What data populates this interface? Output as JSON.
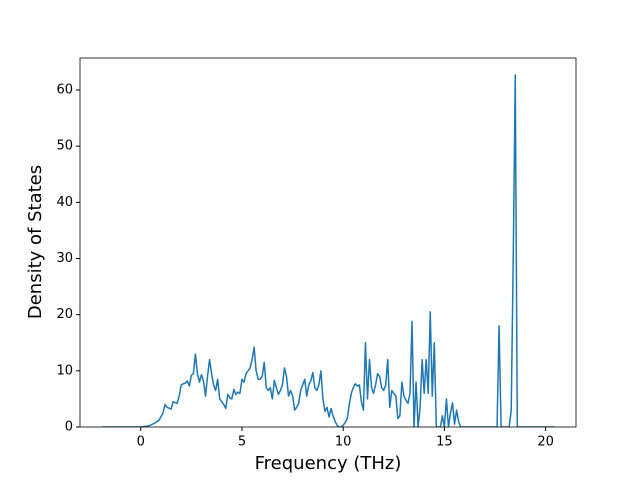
{
  "chart_data": {
    "type": "line",
    "xlabel": "Frequency (THz)",
    "ylabel": "Density of States",
    "xlim": [
      -3.0,
      21.5
    ],
    "ylim": [
      0,
      65.7
    ],
    "xticks": [
      0,
      5,
      10,
      15,
      20
    ],
    "yticks": [
      0,
      10,
      20,
      30,
      40,
      50,
      60
    ],
    "grid": false,
    "series": [
      {
        "color": "#1f77b4",
        "x": [
          -1.9,
          -1,
          0,
          0.4,
          0.7,
          0.9,
          1.1,
          1.2,
          1.3,
          1.5,
          1.6,
          1.8,
          1.9,
          2.0,
          2.1,
          2.2,
          2.3,
          2.4,
          2.5,
          2.6,
          2.7,
          2.8,
          2.9,
          3.0,
          3.1,
          3.2,
          3.3,
          3.4,
          3.5,
          3.6,
          3.7,
          3.8,
          3.9,
          4.0,
          4.1,
          4.2,
          4.3,
          4.4,
          4.5,
          4.6,
          4.7,
          4.8,
          4.9,
          5.0,
          5.1,
          5.2,
          5.3,
          5.4,
          5.5,
          5.6,
          5.7,
          5.8,
          5.9,
          6.0,
          6.1,
          6.2,
          6.3,
          6.4,
          6.5,
          6.6,
          6.7,
          6.8,
          6.9,
          7.0,
          7.1,
          7.2,
          7.3,
          7.4,
          7.5,
          7.6,
          7.7,
          7.8,
          7.9,
          8.0,
          8.1,
          8.2,
          8.3,
          8.4,
          8.5,
          8.6,
          8.7,
          8.8,
          8.9,
          9.0,
          9.1,
          9.2,
          9.3,
          9.4,
          9.5,
          9.6,
          9.7,
          9.8,
          9.9,
          10.0,
          10.1,
          10.2,
          10.3,
          10.4,
          10.5,
          10.6,
          10.7,
          10.8,
          10.9,
          11.0,
          11.1,
          11.2,
          11.3,
          11.4,
          11.5,
          11.6,
          11.7,
          11.8,
          11.9,
          12.0,
          12.1,
          12.2,
          12.3,
          12.4,
          12.5,
          12.6,
          12.7,
          12.8,
          12.9,
          13.0,
          13.1,
          13.2,
          13.3,
          13.4,
          13.5,
          13.6,
          13.7,
          13.8,
          13.9,
          14.0,
          14.1,
          14.2,
          14.3,
          14.4,
          14.5,
          14.6,
          14.7,
          14.8,
          14.9,
          15.0,
          15.1,
          15.2,
          15.3,
          15.4,
          15.5,
          15.6,
          15.7,
          15.8,
          15.9,
          16.0,
          16.2,
          17.0,
          17.6,
          17.7,
          17.8,
          18.0,
          18.2,
          18.3,
          18.4,
          18.5,
          18.6,
          18.7,
          19.0,
          20.0,
          20.45
        ],
        "values": [
          0,
          0,
          0,
          0.2,
          0.7,
          1.2,
          2.5,
          4,
          3.5,
          3.2,
          4.5,
          4.2,
          5.5,
          7.5,
          7.7,
          7.8,
          8.2,
          7.3,
          9.2,
          9.5,
          13,
          9.5,
          8,
          9.3,
          8.2,
          5.5,
          9,
          12,
          9.5,
          7.5,
          6.5,
          8.5,
          5,
          4.5,
          4,
          3.3,
          5.8,
          5.2,
          5,
          6.7,
          5.8,
          6.2,
          6,
          8.5,
          8,
          9.5,
          10,
          10.5,
          12,
          14.2,
          10,
          8.5,
          8.5,
          9,
          11.5,
          7,
          6.5,
          7,
          5,
          8.3,
          7,
          5.8,
          6.5,
          7.5,
          10.5,
          9,
          5.5,
          6.5,
          5.6,
          3,
          3.5,
          4.2,
          6.5,
          7.5,
          8.5,
          5.5,
          7.5,
          8.2,
          9.7,
          7,
          6.5,
          7.5,
          10,
          5,
          2.8,
          3.5,
          1.8,
          3.3,
          2,
          1,
          0.3,
          0,
          0,
          0.3,
          0.8,
          1.5,
          4,
          6,
          7,
          7.7,
          7.3,
          7.5,
          4.5,
          3,
          15,
          5,
          12,
          7,
          6,
          7.5,
          9.5,
          9,
          7,
          6.5,
          7.5,
          12,
          3.5,
          6.5,
          6,
          5.5,
          1.5,
          2,
          8,
          5.5,
          4.8,
          4.2,
          6,
          18.8,
          0,
          8,
          0,
          3.5,
          12,
          6,
          12,
          6,
          20.5,
          5.5,
          15,
          0,
          0,
          0,
          2,
          0,
          5,
          0,
          2.5,
          4.3,
          0.5,
          3,
          1,
          0,
          0,
          0,
          0,
          0,
          0,
          18,
          0,
          0,
          0,
          3,
          30,
          62.7,
          0,
          0,
          0,
          0,
          0
        ]
      }
    ]
  }
}
